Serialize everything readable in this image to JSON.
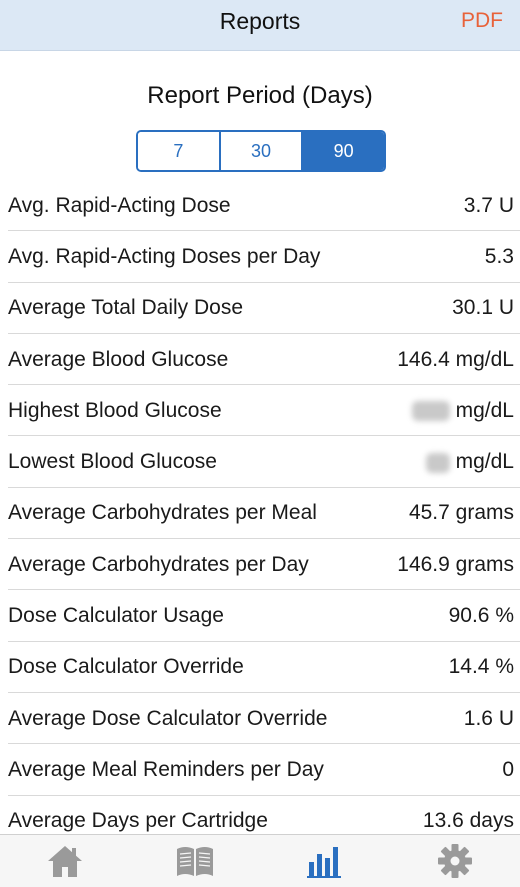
{
  "header": {
    "title": "Reports",
    "pdf_label": "PDF"
  },
  "period": {
    "title": "Report Period (Days)",
    "options": [
      "7",
      "30",
      "90"
    ],
    "selected": "90"
  },
  "stats": [
    {
      "label": "Avg. Rapid-Acting Dose",
      "value": "3.7 U"
    },
    {
      "label": "Avg. Rapid-Acting Doses per Day",
      "value": "5.3"
    },
    {
      "label": "Average Total Daily Dose",
      "value": "30.1 U"
    },
    {
      "label": "Average Blood Glucose",
      "value": "146.4 mg/dL"
    },
    {
      "label": "Highest Blood Glucose",
      "value": "mg/dL"
    },
    {
      "label": "Lowest Blood Glucose",
      "value": "mg/dL"
    },
    {
      "label": "Average Carbohydrates per Meal",
      "value": "45.7 grams"
    },
    {
      "label": "Average Carbohydrates per Day",
      "value": "146.9 grams"
    },
    {
      "label": "Dose Calculator Usage",
      "value": "90.6 %"
    },
    {
      "label": "Dose Calculator Override",
      "value": "14.4 %"
    },
    {
      "label": "Average Dose Calculator Override",
      "value": "1.6 U"
    },
    {
      "label": "Average Meal Reminders per Day",
      "value": "0"
    },
    {
      "label": "Average Days per Cartridge",
      "value": "13.6 days"
    }
  ],
  "tabbar": {
    "items": [
      "home-icon",
      "logbook-icon",
      "reports-icon",
      "settings-icon"
    ],
    "active": "reports-icon",
    "active_color": "#2a6fc0",
    "inactive_color": "#9a9a9a"
  }
}
